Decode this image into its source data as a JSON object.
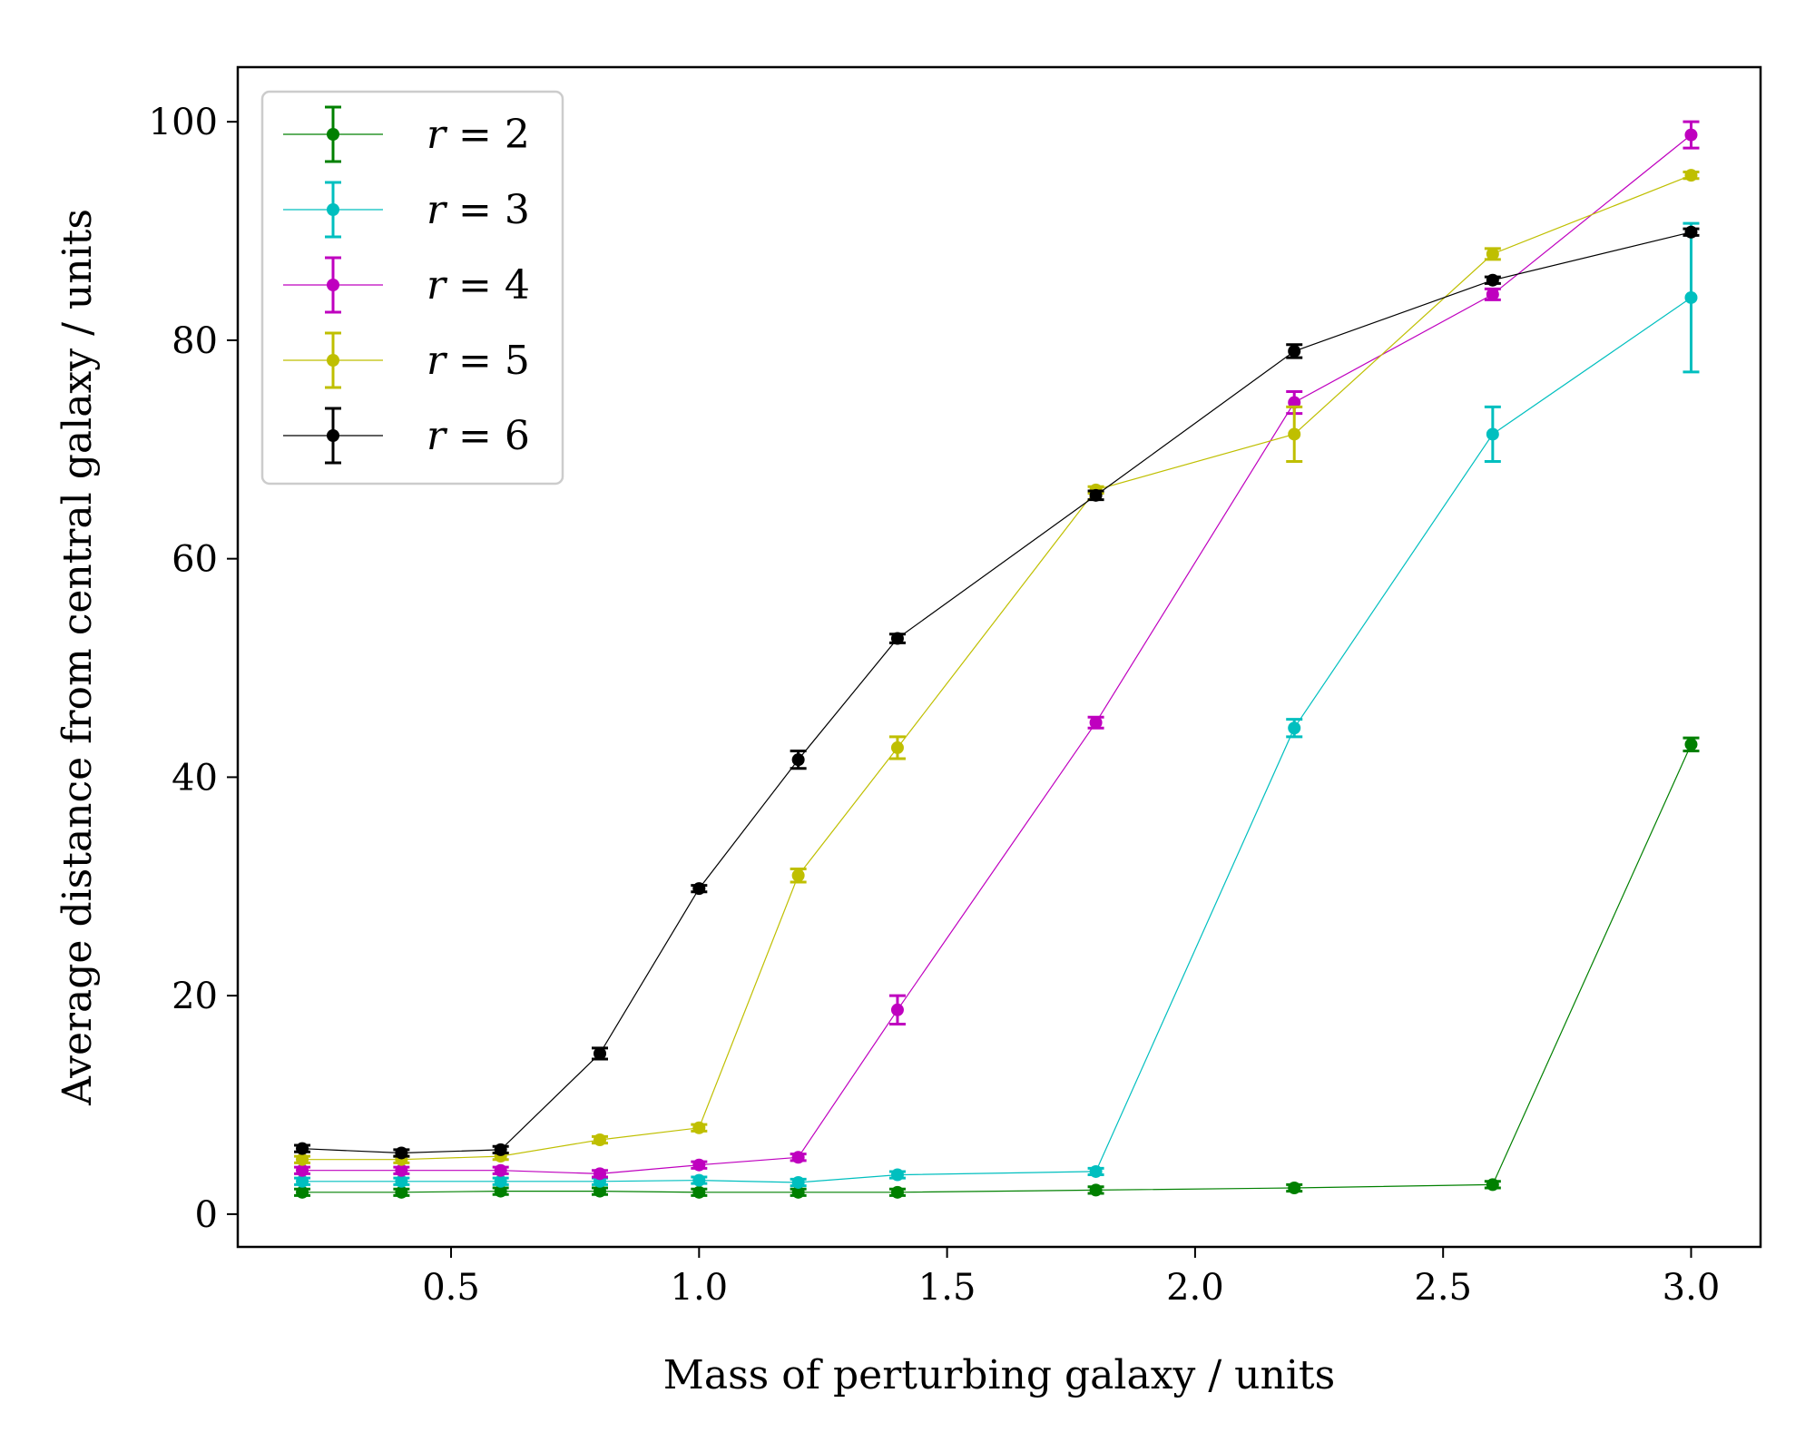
{
  "chart_data": {
    "type": "line",
    "xlabel": "Mass of perturbing galaxy / units",
    "ylabel": "Average distance from central galaxy / units",
    "xlim": [
      0.07,
      3.14
    ],
    "ylim": [
      -3,
      105
    ],
    "xticks": [
      0.5,
      1.0,
      1.5,
      2.0,
      2.5,
      3.0
    ],
    "xtick_labels": [
      "0.5",
      "1.0",
      "1.5",
      "2.0",
      "2.5",
      "3.0"
    ],
    "yticks": [
      0,
      20,
      40,
      60,
      80,
      100
    ],
    "ytick_labels": [
      "0",
      "20",
      "40",
      "60",
      "80",
      "100"
    ],
    "grid": false,
    "legend_position": "top-left",
    "x": [
      0.2,
      0.4,
      0.6,
      0.8,
      1.0,
      1.2,
      1.4,
      1.8,
      2.2,
      2.6,
      3.0
    ],
    "series": [
      {
        "name": "r = 2",
        "label_var": "r",
        "label_val": "2",
        "color": "#008000",
        "values": [
          2.0,
          2.0,
          2.1,
          2.1,
          2.0,
          2.0,
          2.0,
          2.2,
          2.4,
          2.7,
          43.0
        ],
        "errors": [
          0.3,
          0.3,
          0.3,
          0.3,
          0.3,
          0.3,
          0.3,
          0.3,
          0.3,
          0.3,
          0.6
        ]
      },
      {
        "name": "r = 3",
        "label_var": "r",
        "label_val": "3",
        "color": "#00bfbf",
        "values": [
          3.0,
          3.0,
          3.0,
          3.0,
          3.1,
          2.9,
          3.6,
          3.9,
          44.5,
          71.4,
          83.9
        ],
        "errors": [
          0.3,
          0.3,
          0.3,
          0.3,
          0.3,
          0.3,
          0.3,
          0.3,
          0.8,
          2.5,
          6.8
        ]
      },
      {
        "name": "r = 4",
        "label_var": "r",
        "label_val": "4",
        "color": "#bf00bf",
        "values": [
          4.0,
          4.0,
          4.0,
          3.7,
          4.5,
          5.2,
          18.7,
          45.0,
          74.3,
          84.2,
          98.8
        ],
        "errors": [
          0.3,
          0.3,
          0.3,
          0.3,
          0.3,
          0.3,
          1.3,
          0.5,
          1.0,
          0.5,
          1.2
        ]
      },
      {
        "name": "r = 5",
        "label_var": "r",
        "label_val": "5",
        "color": "#bfbf00",
        "values": [
          5.0,
          5.0,
          5.3,
          6.8,
          7.9,
          31.0,
          42.7,
          66.3,
          71.4,
          87.9,
          95.1
        ],
        "errors": [
          0.3,
          0.3,
          0.3,
          0.3,
          0.3,
          0.6,
          1.0,
          0.3,
          2.5,
          0.5,
          0.3
        ]
      },
      {
        "name": "r = 6",
        "label_var": "r",
        "label_val": "6",
        "color": "#000000",
        "values": [
          6.0,
          5.6,
          5.9,
          14.7,
          29.8,
          41.6,
          52.7,
          65.8,
          79.0,
          85.5,
          89.9
        ],
        "errors": [
          0.3,
          0.3,
          0.3,
          0.5,
          0.3,
          0.8,
          0.4,
          0.4,
          0.6,
          0.3,
          0.3
        ]
      }
    ]
  }
}
